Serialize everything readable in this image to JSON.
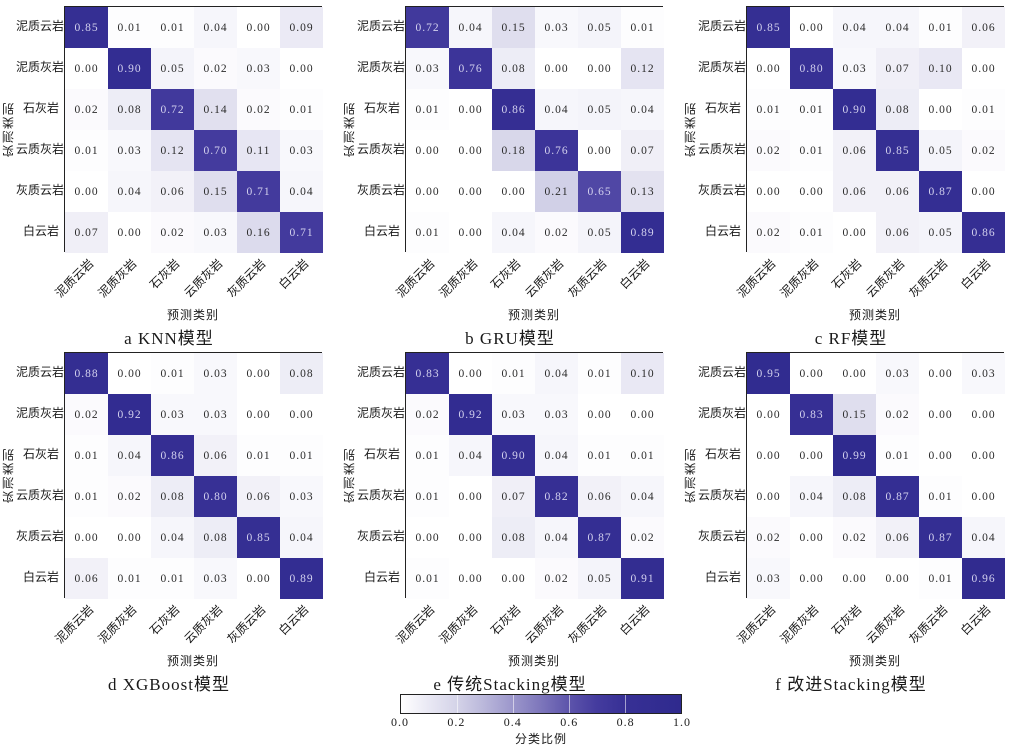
{
  "figure": {
    "axis": {
      "xlabel": "预测类别",
      "ylabel": "实测类别"
    },
    "categories": [
      "泥质云岩",
      "泥质灰岩",
      "石灰岩",
      "云质灰岩",
      "灰质云岩",
      "白云岩"
    ],
    "colorbar": {
      "label": "分类比例",
      "ticks": [
        "0.0",
        "0.2",
        "0.4",
        "0.6",
        "0.8",
        "1.0"
      ],
      "min": 0,
      "max": 1
    },
    "colors": {
      "cmap_stops": [
        [
          0,
          "#ffffff"
        ],
        [
          0.1,
          "#e9e8f4"
        ],
        [
          0.2,
          "#d4d3e8"
        ],
        [
          0.3,
          "#b9b6da"
        ],
        [
          0.4,
          "#9b96cb"
        ],
        [
          0.5,
          "#7d76bb"
        ],
        [
          0.6,
          "#5d54ab"
        ],
        [
          0.7,
          "#443b9e"
        ],
        [
          0.8,
          "#373095"
        ],
        [
          1,
          "#2f2a8e"
        ]
      ],
      "cell_text_dark": "#2b2b2b",
      "cell_text_light": "#d3d1ee",
      "spine": "#222222"
    }
  },
  "chart_data": [
    {
      "type": "heatmap",
      "title": "a KNN模型",
      "xlabel": "预测类别",
      "ylabel": "实测类别",
      "categories": [
        "泥质云岩",
        "泥质灰岩",
        "石灰岩",
        "云质灰岩",
        "灰质云岩",
        "白云岩"
      ],
      "vmin": 0,
      "vmax": 1,
      "values": [
        [
          0.85,
          0.01,
          0.01,
          0.04,
          0.0,
          0.09
        ],
        [
          0.0,
          0.9,
          0.05,
          0.02,
          0.03,
          0.0
        ],
        [
          0.02,
          0.08,
          0.72,
          0.14,
          0.02,
          0.01
        ],
        [
          0.01,
          0.03,
          0.12,
          0.7,
          0.11,
          0.03
        ],
        [
          0.0,
          0.04,
          0.06,
          0.15,
          0.71,
          0.04
        ],
        [
          0.07,
          0.0,
          0.02,
          0.03,
          0.16,
          0.71
        ]
      ]
    },
    {
      "type": "heatmap",
      "title": "b GRU模型",
      "xlabel": "预测类别",
      "ylabel": "实测类别",
      "categories": [
        "泥质云岩",
        "泥质灰岩",
        "石灰岩",
        "云质灰岩",
        "灰质云岩",
        "白云岩"
      ],
      "vmin": 0,
      "vmax": 1,
      "values": [
        [
          0.72,
          0.04,
          0.15,
          0.03,
          0.05,
          0.01
        ],
        [
          0.03,
          0.76,
          0.08,
          0.0,
          0.0,
          0.12
        ],
        [
          0.01,
          0.0,
          0.86,
          0.04,
          0.05,
          0.04
        ],
        [
          0.0,
          0.0,
          0.18,
          0.76,
          0.0,
          0.07
        ],
        [
          0.0,
          0.0,
          0.0,
          0.21,
          0.65,
          0.13
        ],
        [
          0.01,
          0.0,
          0.04,
          0.02,
          0.05,
          0.89
        ]
      ]
    },
    {
      "type": "heatmap",
      "title": "c RF模型",
      "xlabel": "预测类别",
      "ylabel": "实测类别",
      "categories": [
        "泥质云岩",
        "泥质灰岩",
        "石灰岩",
        "云质灰岩",
        "灰质云岩",
        "白云岩"
      ],
      "vmin": 0,
      "vmax": 1,
      "values": [
        [
          0.85,
          0.0,
          0.04,
          0.04,
          0.01,
          0.06
        ],
        [
          0.0,
          0.8,
          0.03,
          0.07,
          0.1,
          0.0
        ],
        [
          0.01,
          0.01,
          0.9,
          0.08,
          0.0,
          0.01
        ],
        [
          0.02,
          0.01,
          0.06,
          0.85,
          0.05,
          0.02
        ],
        [
          0.0,
          0.0,
          0.06,
          0.06,
          0.87,
          0.0
        ],
        [
          0.02,
          0.01,
          0.0,
          0.06,
          0.05,
          0.86
        ]
      ]
    },
    {
      "type": "heatmap",
      "title": "d XGBoost模型",
      "xlabel": "预测类别",
      "ylabel": "实测类别",
      "categories": [
        "泥质云岩",
        "泥质灰岩",
        "石灰岩",
        "云质灰岩",
        "灰质云岩",
        "白云岩"
      ],
      "vmin": 0,
      "vmax": 1,
      "values": [
        [
          0.88,
          0.0,
          0.01,
          0.03,
          0.0,
          0.08
        ],
        [
          0.02,
          0.92,
          0.03,
          0.03,
          0.0,
          0.0
        ],
        [
          0.01,
          0.04,
          0.86,
          0.06,
          0.01,
          0.01
        ],
        [
          0.01,
          0.02,
          0.08,
          0.8,
          0.06,
          0.03
        ],
        [
          0.0,
          0.0,
          0.04,
          0.08,
          0.85,
          0.04
        ],
        [
          0.06,
          0.01,
          0.01,
          0.03,
          0.0,
          0.89
        ]
      ]
    },
    {
      "type": "heatmap",
      "title": "e 传统Stacking模型",
      "xlabel": "预测类别",
      "ylabel": "实测类别",
      "categories": [
        "泥质云岩",
        "泥质灰岩",
        "石灰岩",
        "云质灰岩",
        "灰质云岩",
        "白云岩"
      ],
      "vmin": 0,
      "vmax": 1,
      "values": [
        [
          0.83,
          0.0,
          0.01,
          0.04,
          0.01,
          0.1
        ],
        [
          0.02,
          0.92,
          0.03,
          0.03,
          0.0,
          0.0
        ],
        [
          0.01,
          0.04,
          0.9,
          0.04,
          0.01,
          0.01
        ],
        [
          0.01,
          0.0,
          0.07,
          0.82,
          0.06,
          0.04
        ],
        [
          0.0,
          0.0,
          0.08,
          0.04,
          0.87,
          0.02
        ],
        [
          0.01,
          0.0,
          0.0,
          0.02,
          0.05,
          0.91
        ]
      ]
    },
    {
      "type": "heatmap",
      "title": "f 改进Stacking模型",
      "xlabel": "预测类别",
      "ylabel": "实测类别",
      "categories": [
        "泥质云岩",
        "泥质灰岩",
        "石灰岩",
        "云质灰岩",
        "灰质云岩",
        "白云岩"
      ],
      "vmin": 0,
      "vmax": 1,
      "values": [
        [
          0.95,
          0.0,
          0.0,
          0.03,
          0.0,
          0.03
        ],
        [
          0.0,
          0.83,
          0.15,
          0.02,
          0.0,
          0.0
        ],
        [
          0.0,
          0.0,
          0.99,
          0.01,
          0.0,
          0.0
        ],
        [
          0.0,
          0.04,
          0.08,
          0.87,
          0.01,
          0.0
        ],
        [
          0.02,
          0.0,
          0.02,
          0.06,
          0.87,
          0.04
        ],
        [
          0.03,
          0.0,
          0.0,
          0.0,
          0.01,
          0.96
        ]
      ]
    }
  ]
}
